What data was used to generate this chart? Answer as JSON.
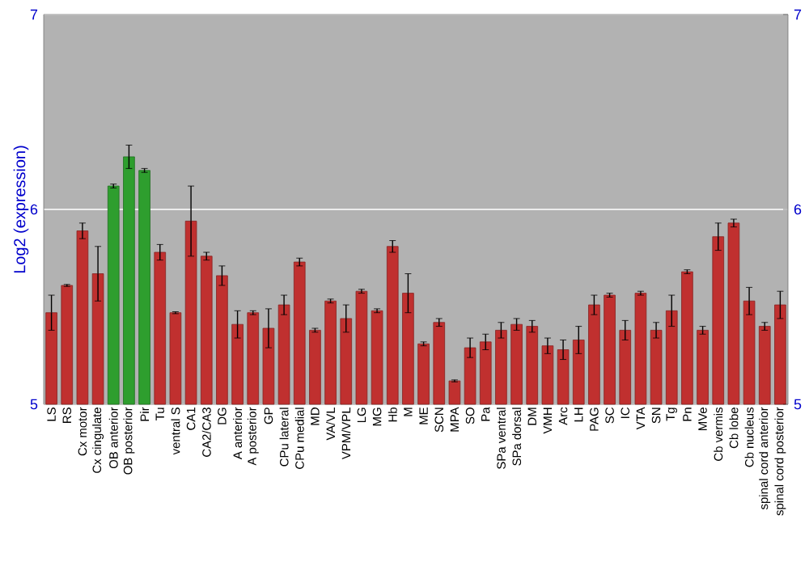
{
  "chart_data": {
    "type": "bar",
    "ylabel": "Log2 (expression)",
    "categories": [
      "LS",
      "RS",
      "Cx motor",
      "Cx cingulate",
      "OB anterior",
      "OB posterior",
      "Pir",
      "Tu",
      "ventral S",
      "CA1",
      "CA2/CA3",
      "DG",
      "A anterior",
      "A posterior",
      "GP",
      "CPu lateral",
      "CPu medial",
      "MD",
      "VA/VL",
      "VPM/VPL",
      "LG",
      "MG",
      "Hb",
      "M",
      "ME",
      "SCN",
      "MPA",
      "SO",
      "Pa",
      "SPa ventral",
      "SPa dorsal",
      "DM",
      "VMH",
      "Arc",
      "LH",
      "PAG",
      "SC",
      "IC",
      "VTA",
      "SN",
      "Tg",
      "Pn",
      "MVe",
      "Cb vermis",
      "Cb lobe",
      "Cb nucleus",
      "spinal cord anterior",
      "spinal cord posterior"
    ],
    "values": [
      5.47,
      5.61,
      5.89,
      5.67,
      6.12,
      6.27,
      6.2,
      5.78,
      5.47,
      5.94,
      5.76,
      5.66,
      5.41,
      5.47,
      5.39,
      5.51,
      5.73,
      5.38,
      5.53,
      5.44,
      5.58,
      5.48,
      5.81,
      5.57,
      5.31,
      5.42,
      5.12,
      5.29,
      5.32,
      5.38,
      5.41,
      5.4,
      5.3,
      5.28,
      5.33,
      5.51,
      5.56,
      5.38,
      5.57,
      5.38,
      5.48,
      5.68,
      5.38,
      5.86,
      5.93,
      5.53,
      5.4,
      5.51
    ],
    "errors": [
      0.09,
      0.005,
      0.04,
      0.14,
      0.01,
      0.06,
      0.01,
      0.04,
      0.005,
      0.18,
      0.02,
      0.05,
      0.07,
      0.01,
      0.1,
      0.05,
      0.02,
      0.01,
      0.01,
      0.07,
      0.01,
      0.01,
      0.03,
      0.1,
      0.01,
      0.02,
      0.005,
      0.05,
      0.04,
      0.04,
      0.03,
      0.03,
      0.04,
      0.05,
      0.07,
      0.05,
      0.01,
      0.05,
      0.01,
      0.04,
      0.08,
      0.01,
      0.02,
      0.07,
      0.02,
      0.07,
      0.02,
      0.07
    ],
    "colors": [
      "#c0302f",
      "#c0302f",
      "#c0302f",
      "#c0302f",
      "#2e9e2e",
      "#2e9e2e",
      "#2e9e2e",
      "#c0302f",
      "#c0302f",
      "#c0302f",
      "#c0302f",
      "#c0302f",
      "#c0302f",
      "#c0302f",
      "#c0302f",
      "#c0302f",
      "#c0302f",
      "#c0302f",
      "#c0302f",
      "#c0302f",
      "#c0302f",
      "#c0302f",
      "#c0302f",
      "#c0302f",
      "#c0302f",
      "#c0302f",
      "#c0302f",
      "#c0302f",
      "#c0302f",
      "#c0302f",
      "#c0302f",
      "#c0302f",
      "#c0302f",
      "#c0302f",
      "#c0302f",
      "#c0302f",
      "#c0302f",
      "#c0302f",
      "#c0302f",
      "#c0302f",
      "#c0302f",
      "#c0302f",
      "#c0302f",
      "#c0302f",
      "#c0302f",
      "#c0302f",
      "#c0302f",
      "#c0302f"
    ],
    "ylim": [
      5,
      7
    ],
    "yticks": [
      5,
      6,
      7
    ],
    "y2lim": [
      5,
      7
    ],
    "y2ticks": [
      5,
      6,
      7
    ],
    "grid": "y"
  }
}
